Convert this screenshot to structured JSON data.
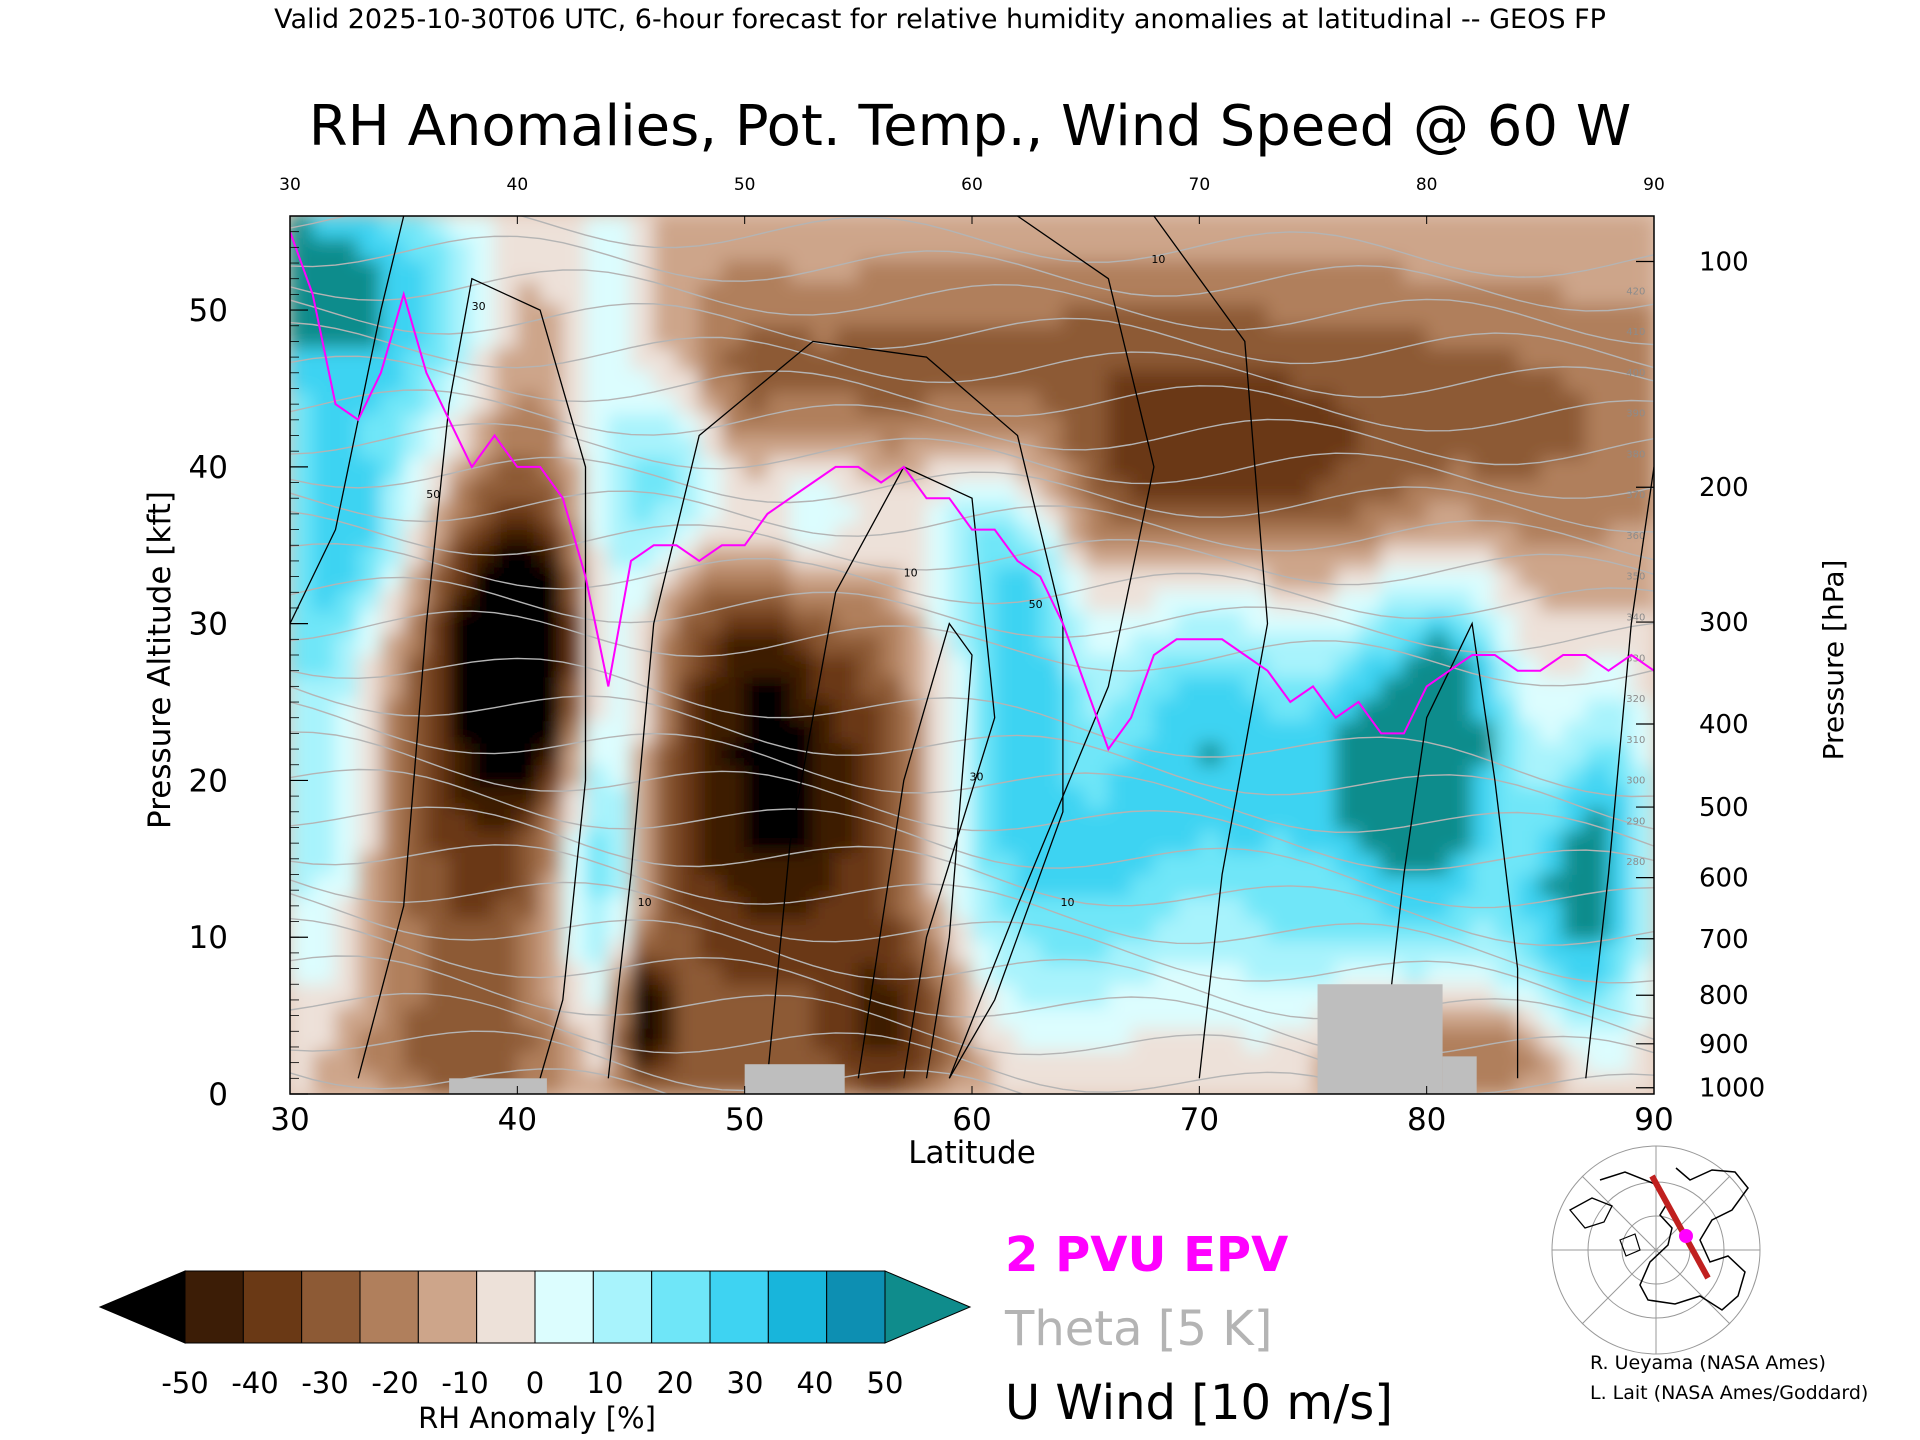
{
  "header": "Valid 2025-10-30T06 UTC, 6-hour forecast for relative humidity anomalies at latitudinal -- GEOS FP",
  "chart_data": {
    "type": "heatmap",
    "title": "RH Anomalies, Pot. Temp., Wind Speed @ 60 W",
    "xlabel": "Latitude",
    "ylabel_left": "Pressure Altitude [kft]",
    "ylabel_right": "Pressure [hPa]",
    "xlim": [
      30,
      90
    ],
    "ylim": [
      0,
      56
    ],
    "x_ticks": [
      "30",
      "40",
      "50",
      "60",
      "70",
      "80",
      "90"
    ],
    "top_ticks": [
      "30",
      "40",
      "50",
      "60",
      "70",
      "80",
      "90"
    ],
    "y_ticks": [
      "0",
      "10",
      "20",
      "30",
      "40",
      "50"
    ],
    "pressure_ticks": [
      {
        "label": "100",
        "kft": 53.1
      },
      {
        "label": "200",
        "kft": 38.7
      },
      {
        "label": "300",
        "kft": 30.1
      },
      {
        "label": "400",
        "kft": 23.6
      },
      {
        "label": "500",
        "kft": 18.3
      },
      {
        "label": "600",
        "kft": 13.8
      },
      {
        "label": "700",
        "kft": 9.9
      },
      {
        "label": "800",
        "kft": 6.3
      },
      {
        "label": "900",
        "kft": 3.2
      },
      {
        "label": "1000",
        "kft": 0.4
      }
    ],
    "colorbar": {
      "label": "RH Anomaly [%]",
      "tick_labels": [
        "-50",
        "-40",
        "-30",
        "-20",
        "-10",
        "0",
        "10",
        "20",
        "30",
        "40",
        "50"
      ],
      "colors": [
        "#000000",
        "#3c1d06",
        "#6a3915",
        "#8d5a35",
        "#b07f5c",
        "#cda58a",
        "#ede1d9",
        "#dcfdfe",
        "#a8f3fc",
        "#6fe6f8",
        "#3ed3f2",
        "#18b5db",
        "#0d8fb2",
        "#0f8c8c"
      ]
    },
    "theta_labels": [
      "420",
      "410",
      "400",
      "390",
      "380",
      "370",
      "360",
      "350",
      "340",
      "330",
      "320",
      "310",
      "300",
      "290",
      "280"
    ],
    "epv_line_2pvu": [
      [
        30,
        55
      ],
      [
        31,
        51
      ],
      [
        32,
        44
      ],
      [
        33,
        43
      ],
      [
        34,
        46
      ],
      [
        35,
        51
      ],
      [
        36,
        46
      ],
      [
        37,
        43
      ],
      [
        38,
        40
      ],
      [
        39,
        42
      ],
      [
        40,
        40
      ],
      [
        41,
        40
      ],
      [
        42,
        38
      ],
      [
        43,
        33
      ],
      [
        44,
        26
      ],
      [
        45,
        34
      ],
      [
        46,
        35
      ],
      [
        47,
        35
      ],
      [
        48,
        34
      ],
      [
        49,
        35
      ],
      [
        50,
        35
      ],
      [
        51,
        37
      ],
      [
        52,
        38
      ],
      [
        53,
        39
      ],
      [
        54,
        40
      ],
      [
        55,
        40
      ],
      [
        56,
        39
      ],
      [
        57,
        40
      ],
      [
        58,
        38
      ],
      [
        59,
        38
      ],
      [
        60,
        36
      ],
      [
        61,
        36
      ],
      [
        62,
        34
      ],
      [
        63,
        33
      ],
      [
        64,
        30
      ],
      [
        65,
        26
      ],
      [
        66,
        22
      ],
      [
        67,
        24
      ],
      [
        68,
        28
      ],
      [
        69,
        29
      ],
      [
        70,
        29
      ],
      [
        71,
        29
      ],
      [
        72,
        28
      ],
      [
        73,
        27
      ],
      [
        74,
        25
      ],
      [
        75,
        26
      ],
      [
        76,
        24
      ],
      [
        77,
        25
      ],
      [
        78,
        23
      ],
      [
        79,
        23
      ],
      [
        80,
        26
      ],
      [
        81,
        27
      ],
      [
        82,
        28
      ],
      [
        83,
        28
      ],
      [
        84,
        27
      ],
      [
        85,
        27
      ],
      [
        86,
        28
      ],
      [
        87,
        28
      ],
      [
        88,
        27
      ],
      [
        89,
        28
      ],
      [
        90,
        27
      ]
    ],
    "u_wind_contour_labels": [
      "10",
      "30",
      "50"
    ],
    "terrain": [
      {
        "x": [
          37,
          41.3
        ],
        "kft": 1.0
      },
      {
        "x": [
          50,
          54.4
        ],
        "kft": 1.9
      },
      {
        "x": [
          75.2,
          80.7
        ],
        "kft": 7.0
      },
      {
        "x": [
          80.7,
          82.2
        ],
        "kft": 2.4
      }
    ]
  },
  "legend": {
    "epv": "2 PVU EPV",
    "theta": "Theta [5 K]",
    "wind": "U Wind [10 m/s]",
    "epv_color": "#ff00ff",
    "theta_color": "#b4b4b4",
    "wind_color": "#000000"
  },
  "credits": [
    "R. Ueyama (NASA Ames)",
    "L. Lait (NASA Ames/Goddard)"
  ]
}
